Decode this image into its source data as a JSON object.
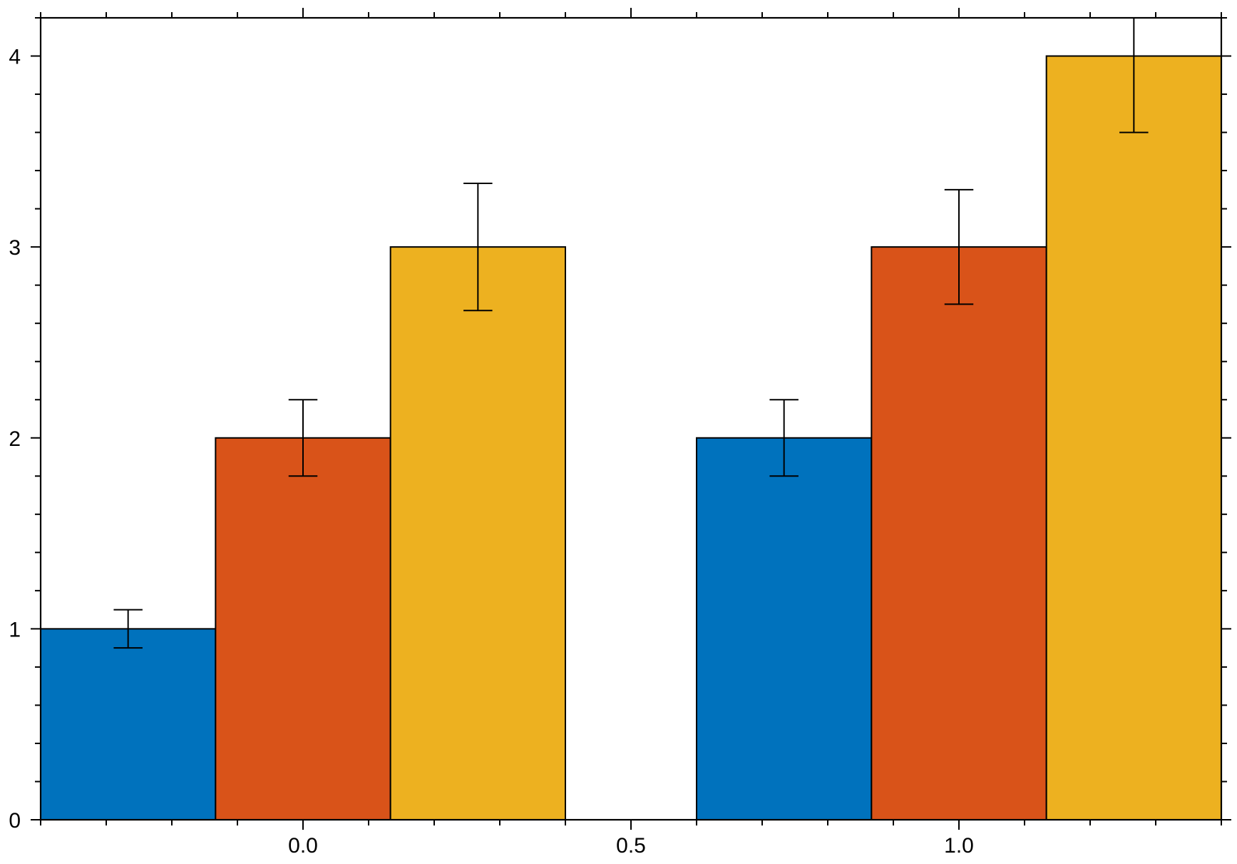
{
  "chart_data": {
    "type": "bar",
    "categories": [
      0,
      1
    ],
    "series": [
      {
        "values": [
          1,
          2
        ],
        "errors": [
          0.1,
          0.2
        ],
        "color": "#0072bd"
      },
      {
        "values": [
          2,
          3
        ],
        "errors": [
          0.2,
          0.3
        ],
        "color": "#d95319"
      },
      {
        "values": [
          3,
          4
        ],
        "errors": [
          0.333,
          0.4
        ],
        "color": "#edb120"
      }
    ],
    "xlim": [
      -0.4,
      1.4
    ],
    "ylim": [
      0,
      4.2
    ],
    "x_ticks": [
      "0.0",
      "0.5",
      "1.0"
    ],
    "x_tick_values": [
      0,
      0.5,
      1
    ],
    "y_ticks": [
      "0",
      "1",
      "2",
      "3",
      "4"
    ],
    "y_tick_values": [
      0,
      1,
      2,
      3,
      4
    ],
    "grid": false,
    "title": "",
    "xlabel": "",
    "ylabel": ""
  }
}
